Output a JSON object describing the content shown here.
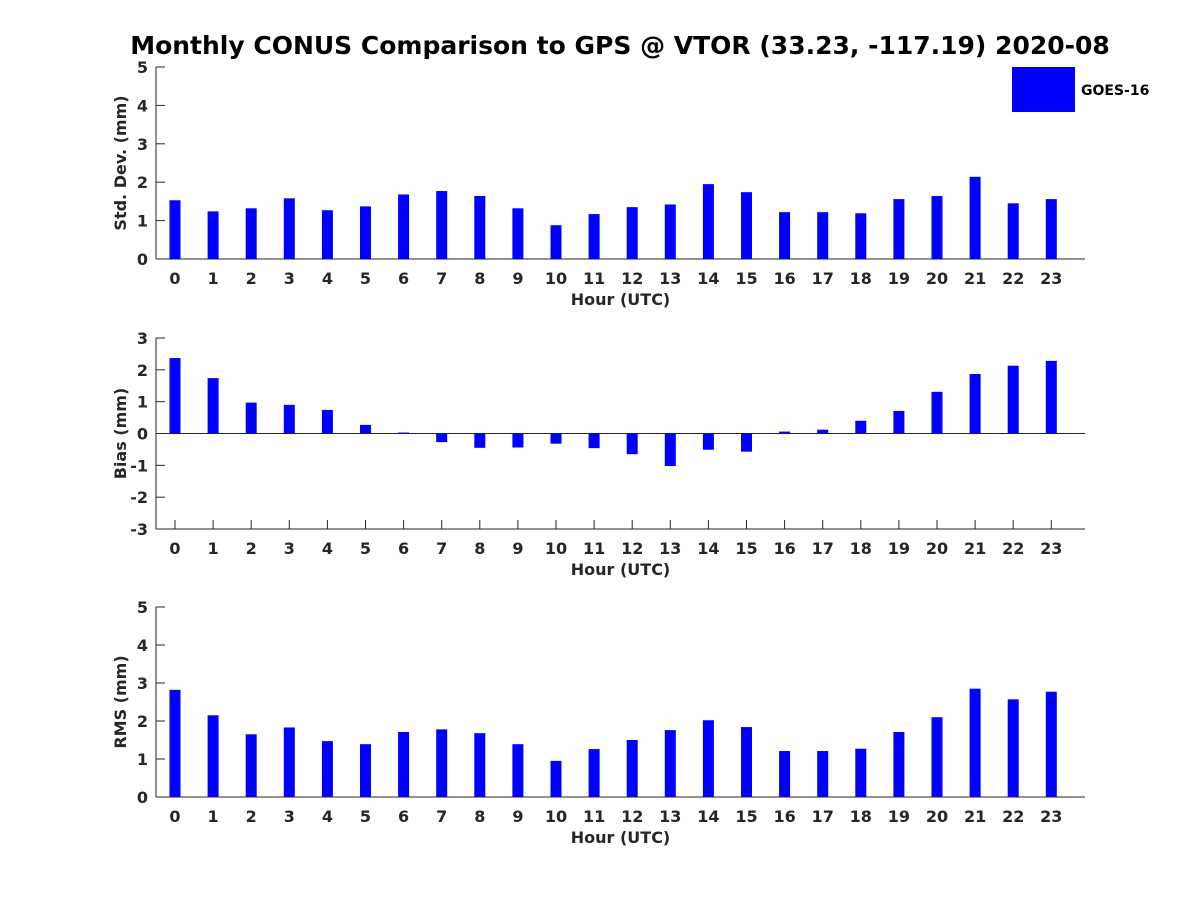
{
  "title": "Monthly CONUS Comparison to GPS @ VTOR (33.23, -117.19) 2020-08",
  "legend": {
    "label": "GOES-16",
    "color": "#0000ff"
  },
  "bar_color": "#0000ff",
  "chart_data": [
    {
      "type": "bar",
      "title": "Monthly CONUS Comparison to GPS @ VTOR (33.23, -117.19) 2020-08",
      "xlabel": "Hour (UTC)",
      "ylabel": "Std. Dev. (mm)",
      "ylim": [
        0,
        5
      ],
      "yticks": [
        0,
        1,
        2,
        3,
        4,
        5
      ],
      "categories": [
        "0",
        "1",
        "2",
        "3",
        "4",
        "5",
        "6",
        "7",
        "8",
        "9",
        "10",
        "11",
        "12",
        "13",
        "14",
        "15",
        "16",
        "17",
        "18",
        "19",
        "20",
        "21",
        "22",
        "23"
      ],
      "series": [
        {
          "name": "GOES-16",
          "values": [
            1.53,
            1.24,
            1.32,
            1.58,
            1.27,
            1.37,
            1.68,
            1.77,
            1.64,
            1.32,
            0.88,
            1.17,
            1.35,
            1.42,
            1.95,
            1.74,
            1.22,
            1.22,
            1.19,
            1.56,
            1.64,
            2.14,
            1.45,
            1.56
          ]
        }
      ]
    },
    {
      "type": "bar",
      "xlabel": "Hour (UTC)",
      "ylabel": "Bias (mm)",
      "ylim": [
        -3,
        3
      ],
      "yticks": [
        -3,
        -2,
        -1,
        0,
        1,
        2,
        3
      ],
      "categories": [
        "0",
        "1",
        "2",
        "3",
        "4",
        "5",
        "6",
        "7",
        "8",
        "9",
        "10",
        "11",
        "12",
        "13",
        "14",
        "15",
        "16",
        "17",
        "18",
        "19",
        "20",
        "21",
        "22",
        "23"
      ],
      "series": [
        {
          "name": "GOES-16",
          "values": [
            2.37,
            1.74,
            0.97,
            0.9,
            0.74,
            0.27,
            0.03,
            -0.27,
            -0.45,
            -0.44,
            -0.32,
            -0.46,
            -0.65,
            -1.02,
            -0.51,
            -0.57,
            0.06,
            0.12,
            0.4,
            0.71,
            1.31,
            1.87,
            2.13,
            2.28
          ]
        }
      ]
    },
    {
      "type": "bar",
      "xlabel": "Hour (UTC)",
      "ylabel": "RMS (mm)",
      "ylim": [
        0,
        5
      ],
      "yticks": [
        0,
        1,
        2,
        3,
        4,
        5
      ],
      "categories": [
        "0",
        "1",
        "2",
        "3",
        "4",
        "5",
        "6",
        "7",
        "8",
        "9",
        "10",
        "11",
        "12",
        "13",
        "14",
        "15",
        "16",
        "17",
        "18",
        "19",
        "20",
        "21",
        "22",
        "23"
      ],
      "series": [
        {
          "name": "GOES-16",
          "values": [
            2.82,
            2.15,
            1.65,
            1.83,
            1.47,
            1.39,
            1.71,
            1.78,
            1.68,
            1.39,
            0.95,
            1.26,
            1.5,
            1.76,
            2.02,
            1.84,
            1.21,
            1.21,
            1.27,
            1.71,
            2.1,
            2.85,
            2.57,
            2.77
          ]
        }
      ]
    }
  ]
}
